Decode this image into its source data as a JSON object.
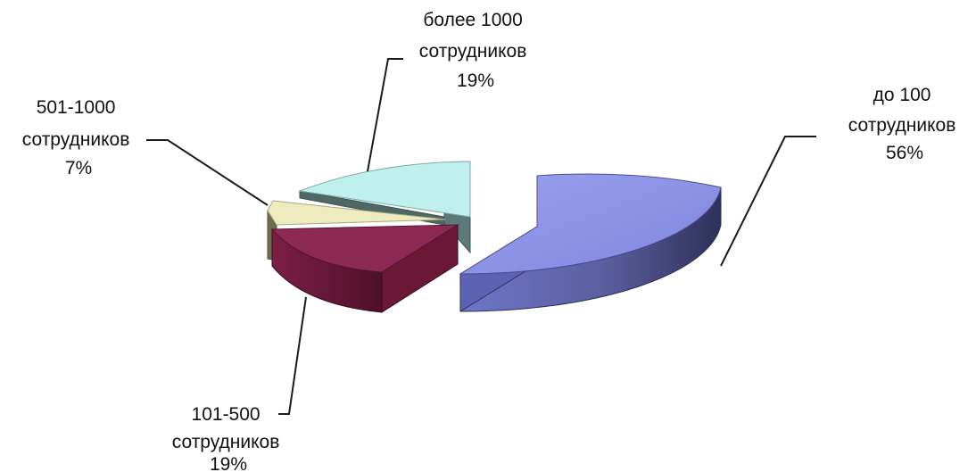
{
  "chart_data": {
    "type": "pie",
    "three_d": true,
    "exploded": true,
    "slices": [
      {
        "label_lines": [
          "до 100",
          "сотрудников"
        ],
        "percent_text": "56%",
        "value": 56,
        "color": "#8c93e6"
      },
      {
        "label_lines": [
          "101-500",
          "сотрудников"
        ],
        "percent_text": "19%",
        "value": 19,
        "color": "#8c2a54"
      },
      {
        "label_lines": [
          "501-1000",
          "сотрудников"
        ],
        "percent_text": "7%",
        "value": 7,
        "color": "#eeebbf"
      },
      {
        "label_lines": [
          "более 1000",
          "сотрудников"
        ],
        "percent_text": "19%",
        "value": 19,
        "color": "#bff0ee"
      }
    ],
    "legend": "none"
  }
}
